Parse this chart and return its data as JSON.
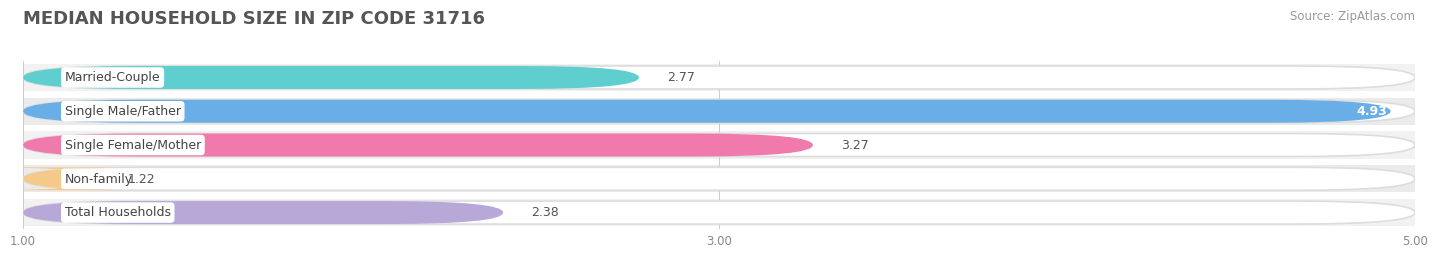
{
  "title": "MEDIAN HOUSEHOLD SIZE IN ZIP CODE 31716",
  "source": "Source: ZipAtlas.com",
  "categories": [
    "Married-Couple",
    "Single Male/Father",
    "Single Female/Mother",
    "Non-family",
    "Total Households"
  ],
  "values": [
    2.77,
    4.93,
    3.27,
    1.22,
    2.38
  ],
  "bar_colors": [
    "#5ecfce",
    "#6aaee8",
    "#f07aab",
    "#f5c98a",
    "#b8a8d8"
  ],
  "xlim": [
    1.0,
    5.0
  ],
  "xticks": [
    1.0,
    3.0,
    5.0
  ],
  "xtick_labels": [
    "1.00",
    "3.00",
    "5.00"
  ],
  "background_color": "#ffffff",
  "row_bg_color": "#f0f0f0",
  "title_fontsize": 13,
  "source_fontsize": 8.5,
  "label_fontsize": 9,
  "value_fontsize": 9
}
